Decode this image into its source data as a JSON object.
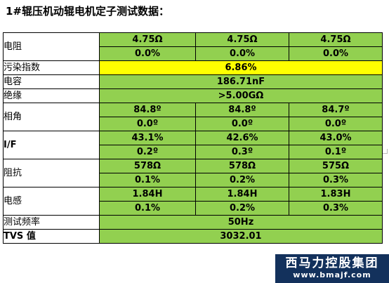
{
  "title": "1#辊压机动辊电机定子测试数据：",
  "brand": {
    "name": "西马力控股集团",
    "url": "www.bmajf.com"
  },
  "rows": {
    "resistance": {
      "label": "电阻",
      "values": [
        "4.75Ω",
        "4.75Ω",
        "4.75Ω"
      ],
      "deviations": [
        "0.0%",
        "0.0%",
        "0.0%"
      ]
    },
    "pollution": {
      "label": "污染指数",
      "value": "6.86%"
    },
    "capacitance": {
      "label": "电容",
      "value": "186.71nF"
    },
    "insulation": {
      "label": "绝缘",
      "value": ">5.00GΩ"
    },
    "phase_angle": {
      "label": "相角",
      "values": [
        "84.8º",
        "84.8º",
        "84.7º"
      ],
      "deviations": [
        "0.0º",
        "0.0º",
        "0.0º"
      ]
    },
    "if": {
      "label": "I/F",
      "values": [
        "43.1%",
        "42.6%",
        "43.0%"
      ],
      "deviations": [
        "0.2º",
        "0.3º",
        "0.1º"
      ]
    },
    "impedance": {
      "label": "阻抗",
      "values": [
        "578Ω",
        "578Ω",
        "575Ω"
      ],
      "deviations": [
        "0.1%",
        "0.2%",
        "0.3%"
      ]
    },
    "inductance": {
      "label": "电感",
      "values": [
        "1.84H",
        "1.84H",
        "1.83H"
      ],
      "deviations": [
        "0.1%",
        "0.2%",
        "0.3%"
      ]
    },
    "frequency": {
      "label": "测试频率",
      "value": "50Hz"
    },
    "tvs": {
      "label": "TVS 值",
      "value": "3032.01"
    }
  },
  "colors": {
    "cell_green": "#92d050",
    "highlight_yellow": "#ffff00",
    "brand_navy": "#13315c"
  }
}
